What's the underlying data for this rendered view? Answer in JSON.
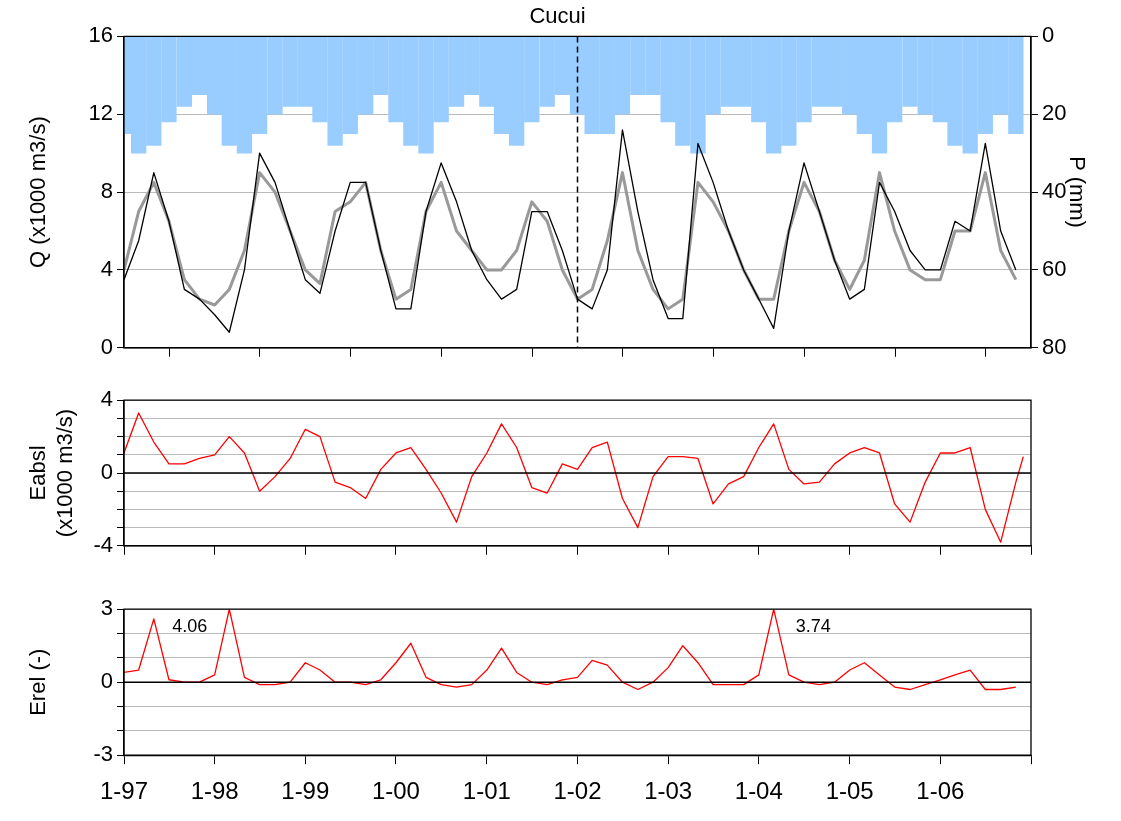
{
  "chart_data": [
    {
      "type": "line",
      "title": "Cucui",
      "ylabel": "Q (x1000 m3/s)",
      "y2label": "P (mm)",
      "x": [
        "1997-01",
        "1997-03",
        "1997-05",
        "1997-07",
        "1997-09",
        "1997-11",
        "1998-01",
        "1998-03",
        "1998-05",
        "1998-07",
        "1998-09",
        "1998-11",
        "1999-01",
        "1999-03",
        "1999-05",
        "1999-07",
        "1999-09",
        "1999-11",
        "2000-01",
        "2000-03",
        "2000-05",
        "2000-07",
        "2000-09",
        "2000-11",
        "2001-01",
        "2001-03",
        "2001-05",
        "2001-07",
        "2001-09",
        "2001-11",
        "2002-01",
        "2002-03",
        "2002-05",
        "2002-07",
        "2002-09",
        "2002-11",
        "2003-01",
        "2003-03",
        "2003-05",
        "2003-07",
        "2003-09",
        "2003-11",
        "2004-01",
        "2004-03",
        "2004-05",
        "2004-07",
        "2004-09",
        "2004-11",
        "2005-01",
        "2005-03",
        "2005-05",
        "2005-07",
        "2005-09",
        "2005-11",
        "2006-01",
        "2006-03",
        "2006-05",
        "2006-07",
        "2006-09",
        "2006-11"
      ],
      "series": [
        {
          "type": "bar",
          "axis": "y2",
          "color": "#99ccff",
          "values": [
            25,
            30,
            28,
            22,
            18,
            15,
            20,
            28,
            30,
            25,
            20,
            18,
            18,
            22,
            28,
            25,
            20,
            15,
            22,
            28,
            30,
            22,
            18,
            15,
            18,
            25,
            28,
            22,
            18,
            15,
            20,
            25,
            25,
            20,
            15,
            15,
            22,
            28,
            30,
            20,
            18,
            18,
            22,
            30,
            28,
            22,
            18,
            18,
            20,
            25,
            30,
            22,
            18,
            20,
            22,
            28,
            30,
            25,
            20,
            25
          ]
        },
        {
          "color": "#999999",
          "values": [
            4,
            7,
            8.5,
            6.5,
            3.5,
            2.5,
            2.2,
            3,
            5,
            9,
            8,
            6,
            4,
            3.3,
            7,
            7.5,
            8.5,
            5,
            2.5,
            3,
            7,
            8.5,
            6,
            5,
            4,
            4,
            5,
            7.5,
            6.5,
            4,
            2.5,
            3,
            5.5,
            9,
            5,
            3,
            2,
            2.5,
            8.5,
            7.5,
            6,
            4,
            2.5,
            2.5,
            6,
            8.5,
            7,
            4.5,
            3,
            4.5,
            9,
            6,
            4,
            3.5,
            3.5,
            6,
            6,
            9,
            5,
            3.5
          ]
        },
        {
          "color": "#000000",
          "values": [
            3.5,
            5.5,
            9,
            6.5,
            3,
            2.5,
            1.7,
            0.8,
            4,
            10,
            8.5,
            6,
            3.5,
            2.8,
            6,
            8.5,
            8.5,
            5,
            2,
            2,
            7,
            9.5,
            7.5,
            5,
            3.5,
            2.5,
            3,
            7,
            7,
            5,
            2.5,
            2,
            4,
            11.2,
            7,
            3.5,
            1.5,
            1.5,
            10.5,
            8.5,
            6,
            4,
            2.5,
            1,
            6,
            9.5,
            7,
            4.5,
            2.5,
            3,
            8.5,
            7,
            5,
            4,
            4,
            6.5,
            6,
            10.5,
            6,
            4
          ]
        }
      ],
      "xlim": [
        "1997-01",
        "2007-01"
      ],
      "xticks": [
        {
          "value": "1997-01",
          "label": null
        },
        {
          "value": "1998-01",
          "label": null
        },
        {
          "value": "1999-01",
          "label": null
        },
        {
          "value": "2000-01",
          "label": null
        },
        {
          "value": "2001-01",
          "label": null
        },
        {
          "value": "2002-01",
          "label": null
        },
        {
          "value": "2003-01",
          "label": null
        },
        {
          "value": "2004-01",
          "label": null
        },
        {
          "value": "2005-01",
          "label": null
        },
        {
          "value": "2006-01",
          "label": null
        },
        {
          "value": "2007-01",
          "label": null
        }
      ],
      "ylim": [
        0,
        16
      ],
      "yticks": [
        0,
        4,
        8,
        12,
        16
      ],
      "y2lim": [
        80,
        0
      ],
      "y2ticks": [
        0,
        20,
        40,
        60,
        80
      ],
      "ref_lines": [
        {
          "axis": "x",
          "value": "2002-01",
          "color": "#000000",
          "line_style": "dashed"
        }
      ],
      "grid": "y",
      "legend": false,
      "tick_labels": "y"
    },
    {
      "type": "line",
      "ylabel": "Eabsl (x1000 m3/s)",
      "x": [
        "1997-01",
        "1997-03",
        "1997-05",
        "1997-07",
        "1997-09",
        "1997-11",
        "1998-01",
        "1998-03",
        "1998-05",
        "1998-07",
        "1998-09",
        "1998-11",
        "1999-01",
        "1999-03",
        "1999-05",
        "1999-07",
        "1999-09",
        "1999-11",
        "2000-01",
        "2000-03",
        "2000-05",
        "2000-07",
        "2000-09",
        "2000-11",
        "2001-01",
        "2001-03",
        "2001-05",
        "2001-07",
        "2001-09",
        "2001-11",
        "2002-01",
        "2002-03",
        "2002-05",
        "2002-07",
        "2002-09",
        "2002-11",
        "2003-01",
        "2003-03",
        "2003-05",
        "2003-07",
        "2003-09",
        "2003-11",
        "2004-01",
        "2004-03",
        "2004-05",
        "2004-07",
        "2004-09",
        "2004-11",
        "2005-01",
        "2005-03",
        "2005-05",
        "2005-07",
        "2005-09",
        "2005-11",
        "2006-01",
        "2006-03",
        "2006-05",
        "2006-07",
        "2006-09",
        "2006-11",
        "2006-12"
      ],
      "series": [
        {
          "color": "#ff0000",
          "values": [
            1.1,
            3.3,
            1.7,
            0.5,
            0.5,
            0.8,
            1.0,
            2.0,
            1.1,
            -1.0,
            -0.2,
            0.8,
            2.4,
            2.0,
            -0.5,
            -0.8,
            -1.4,
            0.2,
            1.1,
            1.4,
            0.2,
            -1.1,
            -2.7,
            -0.2,
            1.1,
            2.7,
            1.4,
            -0.8,
            -1.1,
            0.5,
            0.2,
            1.4,
            1.7,
            -1.4,
            -3.0,
            -0.2,
            0.9,
            0.9,
            0.8,
            -1.7,
            -0.6,
            -0.2,
            1.4,
            2.7,
            0.2,
            -0.6,
            -0.5,
            0.5,
            1.1,
            1.4,
            1.1,
            -1.7,
            -2.7,
            -0.5,
            1.1,
            1.1,
            1.4,
            -2.0,
            -3.8,
            -0.5,
            0.9
          ]
        }
      ],
      "xlim": [
        "1997-01",
        "2007-01"
      ],
      "xticks": [
        {
          "value": "1997-01",
          "label": null
        },
        {
          "value": "1998-01",
          "label": null
        },
        {
          "value": "1999-01",
          "label": null
        },
        {
          "value": "2000-01",
          "label": null
        },
        {
          "value": "2001-01",
          "label": null
        },
        {
          "value": "2002-01",
          "label": null
        },
        {
          "value": "2003-01",
          "label": null
        },
        {
          "value": "2004-01",
          "label": null
        },
        {
          "value": "2005-01",
          "label": null
        },
        {
          "value": "2006-01",
          "label": null
        },
        {
          "value": "2007-01",
          "label": null
        }
      ],
      "ylim": [
        -4,
        4
      ],
      "yticks": [
        -4,
        {
          "value": -3,
          "label": null
        },
        {
          "value": -2,
          "label": null
        },
        {
          "value": -1,
          "label": null
        },
        0,
        {
          "value": 1,
          "label": null
        },
        {
          "value": 2,
          "label": null
        },
        {
          "value": 3,
          "label": null
        },
        4
      ],
      "ref_lines": [
        {
          "axis": "y",
          "value": 0,
          "color": "#000000",
          "line_style": "solid"
        }
      ],
      "grid": "y",
      "legend": false,
      "tick_labels": "y"
    },
    {
      "type": "line",
      "ylabel": "Erel (-)",
      "x": [
        "1997-01",
        "1997-03",
        "1997-05",
        "1997-07",
        "1997-09",
        "1997-11",
        "1998-01",
        "1998-03",
        "1998-05",
        "1998-07",
        "1998-09",
        "1998-11",
        "1999-01",
        "1999-03",
        "1999-05",
        "1999-07",
        "1999-09",
        "1999-11",
        "2000-01",
        "2000-03",
        "2000-05",
        "2000-07",
        "2000-09",
        "2000-11",
        "2001-01",
        "2001-03",
        "2001-05",
        "2001-07",
        "2001-09",
        "2001-11",
        "2002-01",
        "2002-03",
        "2002-05",
        "2002-07",
        "2002-09",
        "2002-11",
        "2003-01",
        "2003-03",
        "2003-05",
        "2003-07",
        "2003-09",
        "2003-11",
        "2004-01",
        "2004-03",
        "2004-05",
        "2004-07",
        "2004-09",
        "2004-11",
        "2005-01",
        "2005-03",
        "2005-05",
        "2005-07",
        "2005-09",
        "2005-11",
        "2006-01",
        "2006-03",
        "2006-05",
        "2006-07",
        "2006-09",
        "2006-11"
      ],
      "series": [
        {
          "color": "#ff0000",
          "values": [
            0.4,
            0.5,
            2.6,
            0.1,
            0,
            0,
            0.3,
            3,
            0.2,
            -0.1,
            -0.1,
            0,
            0.8,
            0.5,
            0,
            0,
            -0.1,
            0.1,
            0.8,
            1.6,
            0.2,
            -0.1,
            -0.2,
            -0.1,
            0.5,
            1.4,
            0.4,
            0,
            -0.1,
            0.1,
            0.2,
            0.9,
            0.7,
            0,
            -0.3,
            0,
            0.6,
            1.5,
            0.8,
            -0.1,
            -0.1,
            -0.1,
            0.3,
            3,
            0.3,
            0,
            -0.1,
            0,
            0.5,
            0.8,
            0.3,
            -0.2,
            -0.3,
            -0.1,
            0.1,
            0.3,
            0.5,
            -0.3,
            -0.3,
            -0.2
          ]
        }
      ],
      "xlim": [
        "1997-01",
        "2007-01"
      ],
      "xticks": [
        {
          "value": "1997-01",
          "label": "1-97"
        },
        {
          "value": "1998-01",
          "label": "1-98"
        },
        {
          "value": "1999-01",
          "label": "1-99"
        },
        {
          "value": "2000-01",
          "label": "1-00"
        },
        {
          "value": "2001-01",
          "label": "1-01"
        },
        {
          "value": "2002-01",
          "label": "1-02"
        },
        {
          "value": "2003-01",
          "label": "1-03"
        },
        {
          "value": "2004-01",
          "label": "1-04"
        },
        {
          "value": "2005-01",
          "label": "1-05"
        },
        {
          "value": "2006-01",
          "label": "1-06"
        },
        {
          "value": "2007-01",
          "label": null
        }
      ],
      "ylim": [
        -3,
        3
      ],
      "yticks": [
        -3,
        {
          "value": -2,
          "label": null
        },
        {
          "value": -1,
          "label": null
        },
        0,
        {
          "value": 1,
          "label": null
        },
        {
          "value": 2,
          "label": null
        },
        3
      ],
      "ref_lines": [
        {
          "axis": "y",
          "value": 0,
          "color": "#000000",
          "line_style": "solid"
        }
      ],
      "annotations": [
        {
          "text": "4.06",
          "x": "1998-03",
          "y": 3
        },
        {
          "text": "3.74",
          "x": "2004-03",
          "y": 3
        }
      ],
      "grid": "y",
      "legend": false
    }
  ]
}
